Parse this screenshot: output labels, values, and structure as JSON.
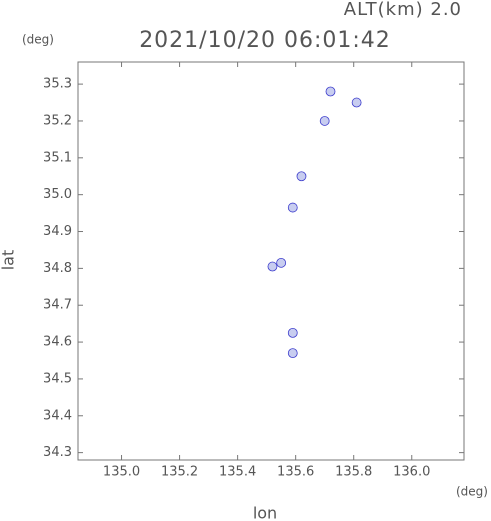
{
  "chart_data": {
    "type": "scatter",
    "annotation": "ALT(km) 2.0",
    "title": "2021/10/20 06:01:42",
    "y_unit": "(deg)",
    "x_unit": "(deg)",
    "xlabel": "lon",
    "ylabel": "lat",
    "x": [
      135.72,
      135.81,
      135.7,
      135.62,
      135.59,
      135.52,
      135.55,
      135.59,
      135.59
    ],
    "values": [
      35.28,
      35.25,
      35.2,
      35.05,
      34.965,
      34.805,
      34.815,
      34.625,
      34.57
    ],
    "color": "#c8cdf0",
    "xlim": [
      134.85,
      136.18
    ],
    "ylim": [
      34.28,
      35.36
    ],
    "xticks": [
      {
        "value": 135,
        "label": "135.0"
      },
      135.2,
      135.4,
      135.6,
      135.8,
      {
        "value": 136,
        "label": "136.0"
      }
    ],
    "yticks": [
      34.3,
      34.4,
      34.5,
      34.6,
      34.7,
      34.8,
      34.9,
      {
        "value": 35,
        "label": "35.0"
      },
      35.1,
      35.2,
      35.3
    ]
  }
}
